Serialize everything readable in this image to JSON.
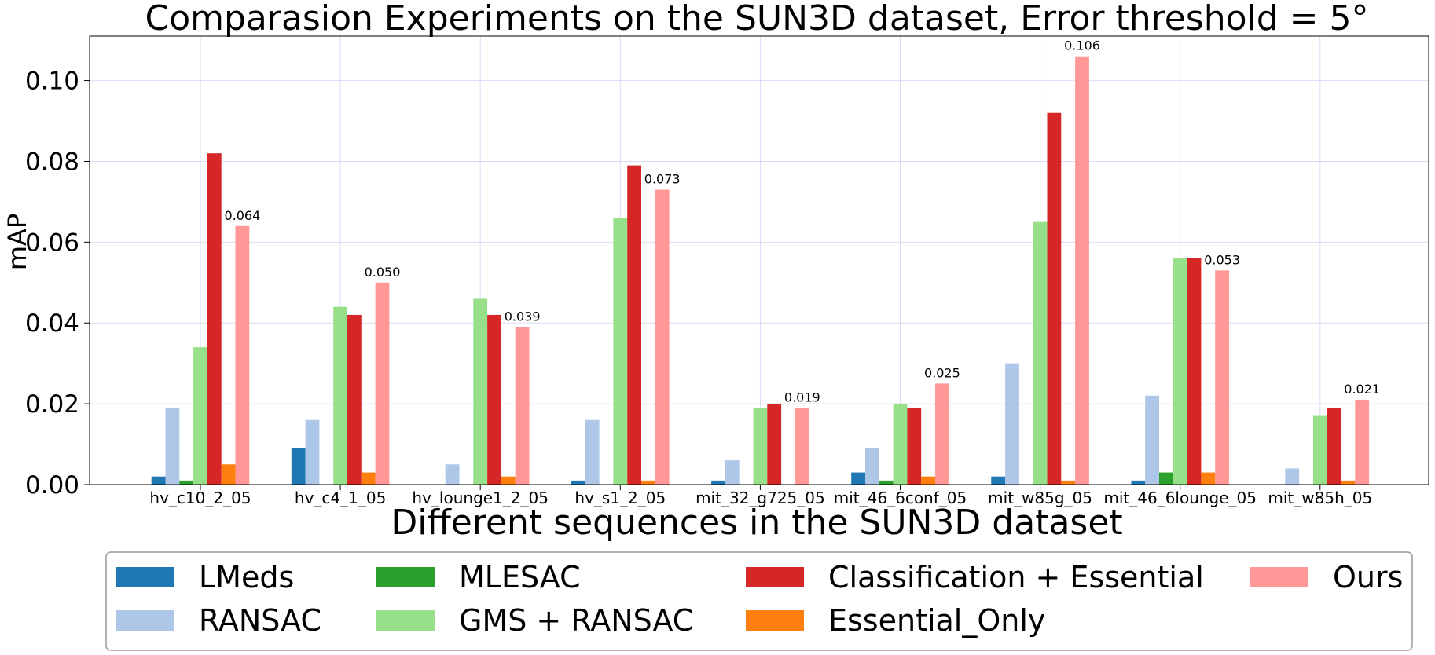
{
  "chart_data": {
    "type": "bar",
    "title": "Comparasion Experiments on the SUN3D dataset, Error threshold = 5°",
    "xlabel": "Different sequences in the SUN3D dataset",
    "ylabel": "mAP",
    "ylim": [
      0,
      0.111
    ],
    "yticks": [
      "0.00",
      "0.02",
      "0.04",
      "0.06",
      "0.08",
      "0.10"
    ],
    "ytick_values": [
      0,
      0.02,
      0.04,
      0.06,
      0.08,
      0.1
    ],
    "grid": true,
    "legend_position": "bottom",
    "categories": [
      "hv_c10_2_05",
      "hv_c4_1_05",
      "hv_lounge1_2_05",
      "hv_s1_2_05",
      "mit_32_g725_05",
      "mit_46_6conf_05",
      "mit_w85g_05",
      "mit_46_6lounge_05",
      "mit_w85h_05"
    ],
    "series": [
      {
        "name": "LMeds",
        "color": "#1f77b4",
        "values": [
          0.002,
          0.009,
          0,
          0.001,
          0.001,
          0.003,
          0.002,
          0.001,
          0
        ]
      },
      {
        "name": "RANSAC",
        "color": "#aec7e8",
        "values": [
          0.019,
          0.016,
          0.005,
          0.016,
          0.006,
          0.009,
          0.03,
          0.022,
          0.004
        ]
      },
      {
        "name": "MLESAC",
        "color": "#2ca02c",
        "values": [
          0.001,
          0,
          0,
          0,
          0,
          0.001,
          0,
          0.003,
          0
        ]
      },
      {
        "name": "GMS + RANSAC",
        "color": "#98df8a",
        "values": [
          0.034,
          0.044,
          0.046,
          0.066,
          0.019,
          0.02,
          0.065,
          0.056,
          0.017
        ]
      },
      {
        "name": "Classification + Essential",
        "color": "#d62728",
        "values": [
          0.082,
          0.042,
          0.042,
          0.079,
          0.02,
          0.019,
          0.092,
          0.056,
          0.019
        ]
      },
      {
        "name": "Essential_Only",
        "color": "#ff7f0e",
        "values": [
          0.005,
          0.003,
          0.002,
          0.001,
          0,
          0.002,
          0.001,
          0.003,
          0.001
        ]
      },
      {
        "name": "Ours",
        "color": "#ff9896",
        "values": [
          0.064,
          0.05,
          0.039,
          0.073,
          0.019,
          0.025,
          0.106,
          0.053,
          0.021
        ]
      }
    ],
    "data_labels": [
      "0.064",
      "0.050",
      "0.039",
      "0.073",
      "0.019",
      "0.025",
      "0.106",
      "0.053",
      "0.021"
    ]
  }
}
